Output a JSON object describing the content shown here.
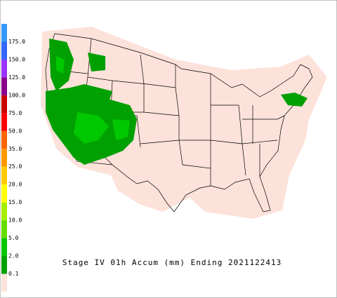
{
  "title": "Stage IV 01h Accum (mm) Ending 2021122413",
  "colorbar": {
    "labels": [
      "0.1",
      "2.0",
      "5.0",
      "10.0",
      "15.0",
      "20.0",
      "25.0",
      "35.0",
      "50.0",
      "75.0",
      "100.0",
      "125.0",
      "150.0",
      "175.0"
    ],
    "colors": [
      "#fde2da",
      "#00a000",
      "#00c800",
      "#66dd00",
      "#a6ee00",
      "#ffff00",
      "#ffcc00",
      "#ff9900",
      "#ff6600",
      "#ff0000",
      "#c80000",
      "#8b008b",
      "#9933ff",
      "#3366ff",
      "#3399ff"
    ]
  }
}
